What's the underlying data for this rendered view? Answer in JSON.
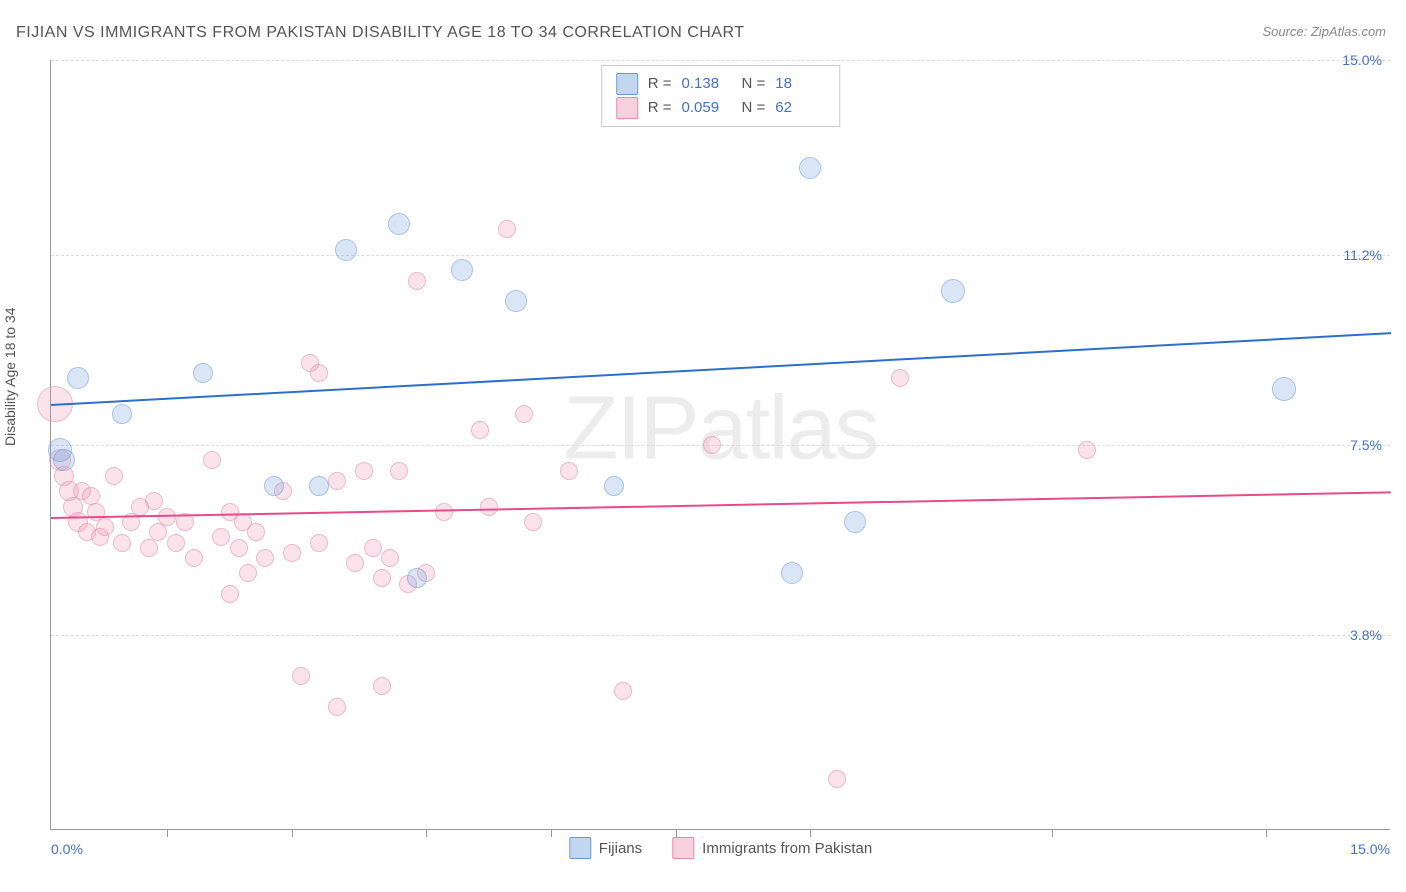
{
  "title": "FIJIAN VS IMMIGRANTS FROM PAKISTAN DISABILITY AGE 18 TO 34 CORRELATION CHART",
  "source": "Source: ZipAtlas.com",
  "ylabel": "Disability Age 18 to 34",
  "watermark": {
    "bold": "ZIP",
    "light": "atlas"
  },
  "colors": {
    "series1_fill": "rgba(120,165,220,0.45)",
    "series1_stroke": "#6a9bd8",
    "series1_line": "#2e6fc9",
    "series2_fill": "rgba(235,140,170,0.40)",
    "series2_stroke": "#e68aa8",
    "series2_line": "#e74b8a",
    "axis_label": "#4472c4",
    "grid": "#dddddd"
  },
  "chart": {
    "type": "scatter",
    "xlim": [
      0,
      15
    ],
    "ylim": [
      0,
      15
    ],
    "yticks": [
      {
        "value": 3.8,
        "label": "3.8%"
      },
      {
        "value": 7.5,
        "label": "7.5%"
      },
      {
        "value": 11.2,
        "label": "11.2%"
      },
      {
        "value": 15.0,
        "label": "15.0%"
      }
    ],
    "xticks_minor": [
      1.3,
      2.7,
      4.2,
      5.6,
      7.0,
      8.5,
      11.2,
      13.6
    ],
    "xtick_labels": {
      "left": "0.0%",
      "right": "15.0%"
    },
    "legend_top": [
      {
        "swatch": "series1",
        "r_label": "R =",
        "r": "0.138",
        "n_label": "N =",
        "n": "18"
      },
      {
        "swatch": "series2",
        "r_label": "R =",
        "r": "0.059",
        "n_label": "N =",
        "n": "62"
      }
    ],
    "legend_bottom": [
      {
        "swatch": "series1",
        "label": "Fijians"
      },
      {
        "swatch": "series2",
        "label": "Immigrants from Pakistan"
      }
    ],
    "series": [
      {
        "id": "series1",
        "name": "Fijians",
        "trend": {
          "y_at_x0": 8.3,
          "y_at_xmax": 9.7
        },
        "points": [
          {
            "x": 0.1,
            "y": 7.4,
            "r": 12
          },
          {
            "x": 0.15,
            "y": 7.2,
            "r": 11
          },
          {
            "x": 0.8,
            "y": 8.1,
            "r": 10
          },
          {
            "x": 0.3,
            "y": 8.8,
            "r": 11
          },
          {
            "x": 1.7,
            "y": 8.9,
            "r": 10
          },
          {
            "x": 2.5,
            "y": 6.7,
            "r": 10
          },
          {
            "x": 3.0,
            "y": 6.7,
            "r": 10
          },
          {
            "x": 3.3,
            "y": 11.3,
            "r": 11
          },
          {
            "x": 3.9,
            "y": 11.8,
            "r": 11
          },
          {
            "x": 4.1,
            "y": 4.9,
            "r": 10
          },
          {
            "x": 4.6,
            "y": 10.9,
            "r": 11
          },
          {
            "x": 5.2,
            "y": 10.3,
            "r": 11
          },
          {
            "x": 6.3,
            "y": 6.7,
            "r": 10
          },
          {
            "x": 8.3,
            "y": 5.0,
            "r": 11
          },
          {
            "x": 8.5,
            "y": 12.9,
            "r": 11
          },
          {
            "x": 9.0,
            "y": 6.0,
            "r": 11
          },
          {
            "x": 10.1,
            "y": 10.5,
            "r": 12
          },
          {
            "x": 13.8,
            "y": 8.6,
            "r": 12
          }
        ]
      },
      {
        "id": "series2",
        "name": "Immigrants from Pakistan",
        "trend": {
          "y_at_x0": 6.1,
          "y_at_xmax": 6.6
        },
        "points": [
          {
            "x": 0.05,
            "y": 8.3,
            "r": 18
          },
          {
            "x": 0.1,
            "y": 7.2,
            "r": 11
          },
          {
            "x": 0.15,
            "y": 6.9,
            "r": 10
          },
          {
            "x": 0.2,
            "y": 6.6,
            "r": 10
          },
          {
            "x": 0.25,
            "y": 6.3,
            "r": 10
          },
          {
            "x": 0.3,
            "y": 6.0,
            "r": 10
          },
          {
            "x": 0.35,
            "y": 6.6,
            "r": 9
          },
          {
            "x": 0.4,
            "y": 5.8,
            "r": 9
          },
          {
            "x": 0.5,
            "y": 6.2,
            "r": 9
          },
          {
            "x": 0.6,
            "y": 5.9,
            "r": 9
          },
          {
            "x": 0.7,
            "y": 6.9,
            "r": 9
          },
          {
            "x": 0.8,
            "y": 5.6,
            "r": 9
          },
          {
            "x": 0.9,
            "y": 6.0,
            "r": 9
          },
          {
            "x": 1.0,
            "y": 6.3,
            "r": 9
          },
          {
            "x": 1.1,
            "y": 5.5,
            "r": 9
          },
          {
            "x": 1.2,
            "y": 5.8,
            "r": 9
          },
          {
            "x": 1.3,
            "y": 6.1,
            "r": 9
          },
          {
            "x": 1.4,
            "y": 5.6,
            "r": 9
          },
          {
            "x": 1.5,
            "y": 6.0,
            "r": 9
          },
          {
            "x": 1.6,
            "y": 5.3,
            "r": 9
          },
          {
            "x": 1.8,
            "y": 7.2,
            "r": 9
          },
          {
            "x": 1.9,
            "y": 5.7,
            "r": 9
          },
          {
            "x": 2.0,
            "y": 6.2,
            "r": 9
          },
          {
            "x": 2.0,
            "y": 4.6,
            "r": 9
          },
          {
            "x": 2.1,
            "y": 5.5,
            "r": 9
          },
          {
            "x": 2.2,
            "y": 5.0,
            "r": 9
          },
          {
            "x": 2.3,
            "y": 5.8,
            "r": 9
          },
          {
            "x": 2.4,
            "y": 5.3,
            "r": 9
          },
          {
            "x": 2.6,
            "y": 6.6,
            "r": 9
          },
          {
            "x": 2.7,
            "y": 5.4,
            "r": 9
          },
          {
            "x": 2.8,
            "y": 3.0,
            "r": 9
          },
          {
            "x": 2.9,
            "y": 9.1,
            "r": 9
          },
          {
            "x": 3.0,
            "y": 5.6,
            "r": 9
          },
          {
            "x": 3.0,
            "y": 8.9,
            "r": 9
          },
          {
            "x": 3.2,
            "y": 6.8,
            "r": 9
          },
          {
            "x": 3.2,
            "y": 2.4,
            "r": 9
          },
          {
            "x": 3.4,
            "y": 5.2,
            "r": 9
          },
          {
            "x": 3.5,
            "y": 7.0,
            "r": 9
          },
          {
            "x": 3.6,
            "y": 5.5,
            "r": 9
          },
          {
            "x": 3.7,
            "y": 4.9,
            "r": 9
          },
          {
            "x": 3.7,
            "y": 2.8,
            "r": 9
          },
          {
            "x": 3.8,
            "y": 5.3,
            "r": 9
          },
          {
            "x": 3.9,
            "y": 7.0,
            "r": 9
          },
          {
            "x": 4.0,
            "y": 4.8,
            "r": 9
          },
          {
            "x": 4.1,
            "y": 10.7,
            "r": 9
          },
          {
            "x": 4.2,
            "y": 5.0,
            "r": 9
          },
          {
            "x": 4.4,
            "y": 6.2,
            "r": 9
          },
          {
            "x": 4.8,
            "y": 7.8,
            "r": 9
          },
          {
            "x": 4.9,
            "y": 6.3,
            "r": 9
          },
          {
            "x": 5.1,
            "y": 11.7,
            "r": 9
          },
          {
            "x": 5.3,
            "y": 8.1,
            "r": 9
          },
          {
            "x": 5.4,
            "y": 6.0,
            "r": 9
          },
          {
            "x": 5.8,
            "y": 7.0,
            "r": 9
          },
          {
            "x": 6.4,
            "y": 2.7,
            "r": 9
          },
          {
            "x": 7.4,
            "y": 7.5,
            "r": 9
          },
          {
            "x": 8.8,
            "y": 1.0,
            "r": 9
          },
          {
            "x": 9.5,
            "y": 8.8,
            "r": 9
          },
          {
            "x": 11.6,
            "y": 7.4,
            "r": 9
          },
          {
            "x": 0.45,
            "y": 6.5,
            "r": 9
          },
          {
            "x": 0.55,
            "y": 5.7,
            "r": 9
          },
          {
            "x": 1.15,
            "y": 6.4,
            "r": 9
          },
          {
            "x": 2.15,
            "y": 6.0,
            "r": 9
          }
        ]
      }
    ]
  }
}
